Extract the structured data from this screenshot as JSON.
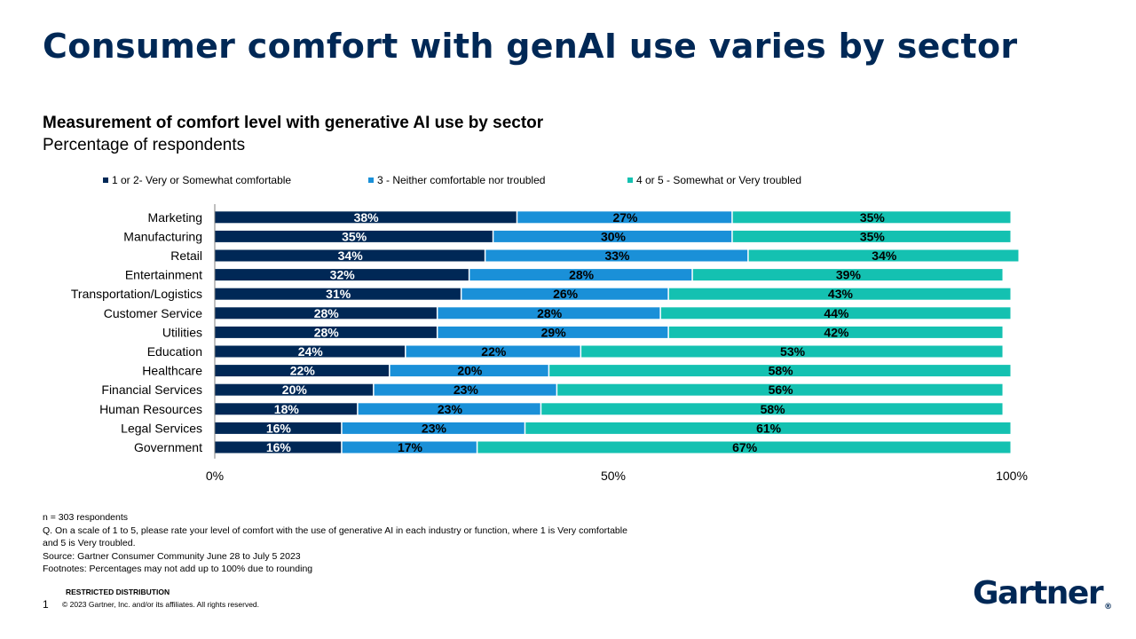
{
  "page": {
    "title": "Consumer comfort with genAI use varies by sector",
    "subtitle": "Measurement of comfort level with generative AI use by sector",
    "subtitle2": "Percentage of respondents",
    "notes": [
      "n = 303 respondents",
      "Q. On a scale of 1 to 5, please rate your level of comfort with the use of generative AI in each industry or function, where 1 is Very comfortable",
      "and 5 is Very troubled.",
      "Source: Gartner Consumer Community June 28 to July 5 2023",
      "Footnotes: Percentages may not add up to 100% due to rounding"
    ],
    "footer_distribution": "RESTRICTED DISTRIBUTION",
    "footer_copyright": "© 2023  Gartner, Inc. and/or its affiliates. All rights reserved.",
    "page_number": "1",
    "logo": "Gartner",
    "logo_mark": "®"
  },
  "chart_data": {
    "type": "bar",
    "orientation": "horizontal",
    "stacked": true,
    "title": "Measurement of comfort level with generative AI use by sector",
    "subtitle": "Percentage of respondents",
    "categories": [
      "Marketing",
      "Manufacturing",
      "Retail",
      "Entertainment",
      "Transportation/Logistics",
      "Customer Service",
      "Utilities",
      "Education",
      "Healthcare",
      "Financial Services",
      "Human Resources",
      "Legal Services",
      "Government"
    ],
    "series": [
      {
        "name": "1 or 2- Very or Somewhat comfortable",
        "color": "#002856",
        "values": [
          38,
          35,
          34,
          32,
          31,
          28,
          28,
          24,
          22,
          20,
          18,
          16,
          16
        ]
      },
      {
        "name": "3 - Neither comfortable nor troubled",
        "color": "#1a90d8",
        "values": [
          27,
          30,
          33,
          28,
          26,
          28,
          29,
          22,
          20,
          23,
          23,
          23,
          17
        ]
      },
      {
        "name": "4 or 5 - Somewhat or Very troubled",
        "color": "#14c1b1",
        "values": [
          35,
          35,
          34,
          39,
          43,
          44,
          42,
          53,
          58,
          56,
          58,
          61,
          67
        ]
      }
    ],
    "xlim": [
      0,
      100
    ],
    "xticks": [
      0,
      50,
      100
    ],
    "xtick_labels": [
      "0%",
      "50%",
      "100%"
    ],
    "value_suffix": "%",
    "legend_position": "top",
    "grid": false
  }
}
